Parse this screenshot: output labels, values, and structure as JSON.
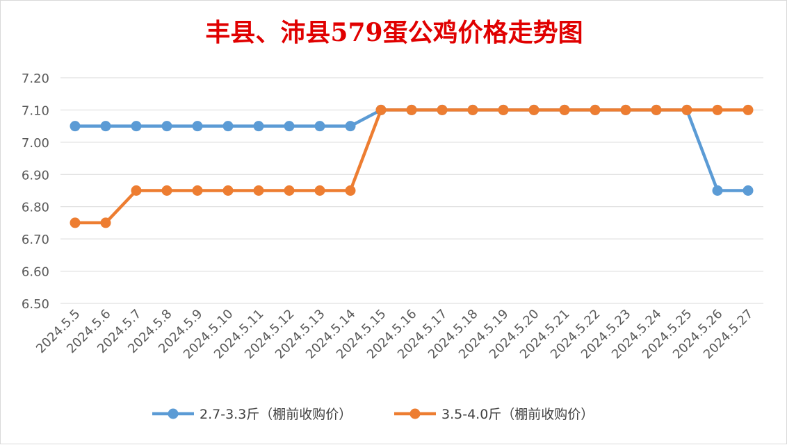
{
  "chart_data": {
    "type": "line",
    "title": "丰县、沛县579蛋公鸡价格走势图",
    "xlabel": "",
    "ylabel": "",
    "categories": [
      "2024.5.5",
      "2024.5.6",
      "2024.5.7",
      "2024.5.8",
      "2024.5.9",
      "2024.5.10",
      "2024.5.11",
      "2024.5.12",
      "2024.5.13",
      "2024.5.14",
      "2024.5.15",
      "2024.5.16",
      "2024.5.17",
      "2024.5.18",
      "2024.5.19",
      "2024.5.20",
      "2024.5.21",
      "2024.5.22",
      "2024.5.23",
      "2024.5.24",
      "2024.5.25",
      "2024.5.26",
      "2024.5.27"
    ],
    "y_ticks": [
      "6.50",
      "6.60",
      "6.70",
      "6.80",
      "6.90",
      "7.00",
      "7.10",
      "7.20"
    ],
    "ylim": [
      6.5,
      7.2
    ],
    "grid": true,
    "legend_position": "bottom",
    "series": [
      {
        "name": "2.7-3.3斤（棚前收购价）",
        "color": "#5b9bd5",
        "values": [
          7.05,
          7.05,
          7.05,
          7.05,
          7.05,
          7.05,
          7.05,
          7.05,
          7.05,
          7.05,
          7.1,
          7.1,
          7.1,
          7.1,
          7.1,
          7.1,
          7.1,
          7.1,
          7.1,
          7.1,
          7.1,
          6.85,
          6.85
        ]
      },
      {
        "name": "3.5-4.0斤（棚前收购价）",
        "color": "#ed7d31",
        "values": [
          6.75,
          6.75,
          6.85,
          6.85,
          6.85,
          6.85,
          6.85,
          6.85,
          6.85,
          6.85,
          7.1,
          7.1,
          7.1,
          7.1,
          7.1,
          7.1,
          7.1,
          7.1,
          7.1,
          7.1,
          7.1,
          7.1,
          7.1
        ]
      }
    ]
  }
}
